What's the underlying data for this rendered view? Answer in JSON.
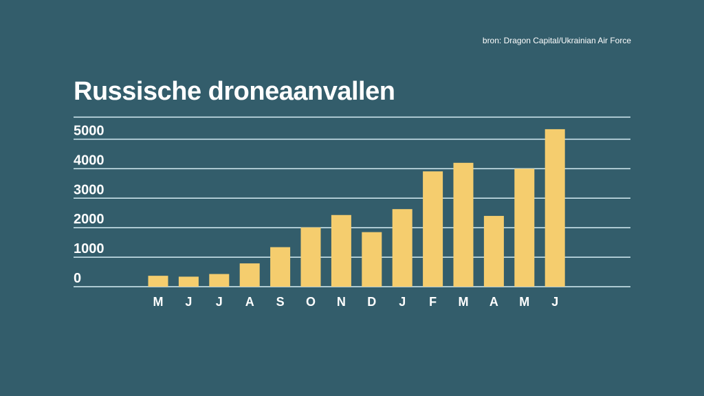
{
  "source": "bron: Dragon Capital/Ukrainian Air Force",
  "chart_data": {
    "type": "bar",
    "title": "Russische droneaanvallen",
    "xlabel": "",
    "ylabel": "",
    "categories": [
      "M",
      "J",
      "J",
      "A",
      "S",
      "O",
      "N",
      "D",
      "J",
      "F",
      "M",
      "A",
      "M",
      "J"
    ],
    "values": [
      370,
      340,
      430,
      790,
      1340,
      2010,
      2430,
      1850,
      2630,
      3910,
      4200,
      2400,
      4000,
      5340
    ],
    "yticks": [
      0,
      1000,
      2000,
      3000,
      4000,
      5000
    ],
    "ytick_labels": [
      "0",
      "1000",
      "2000",
      "3000",
      "4000",
      "5000"
    ],
    "ylim": [
      0,
      5750
    ],
    "grid": true,
    "colors": {
      "bar": "#f5cd6e",
      "background": "#335d6b",
      "grid": "#d7eef5",
      "text": "#ffffff"
    }
  }
}
